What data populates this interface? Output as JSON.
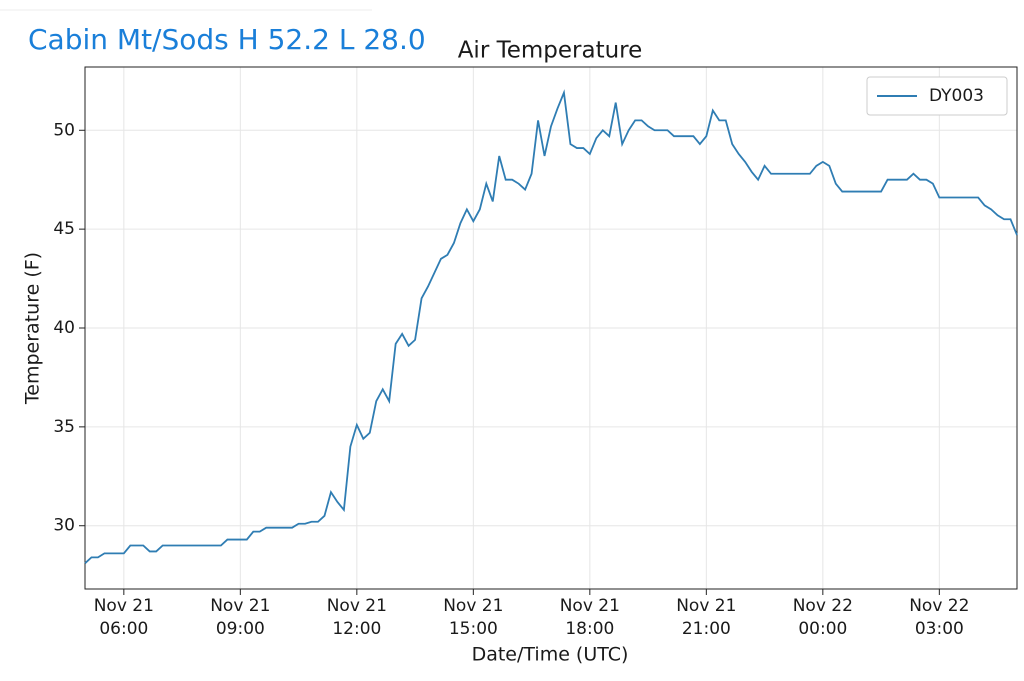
{
  "header": "Cabin Mt/Sods H 52.2 L 28.0",
  "chart_data": {
    "type": "line",
    "title": "Air Temperature",
    "x_label": "Date/Time (UTC)",
    "y_label": "Temperature (F)",
    "xlim": [
      "Nov 21 05:00",
      "Nov 22 05:00"
    ],
    "xticks": [
      "Nov 21 06:00",
      "Nov 21 09:00",
      "Nov 21 12:00",
      "Nov 21 15:00",
      "Nov 21 18:00",
      "Nov 21 21:00",
      "Nov 22 00:00",
      "Nov 22 03:00"
    ],
    "ylim": [
      26.8,
      53.2
    ],
    "yticks": [
      30,
      35,
      40,
      45,
      50
    ],
    "grid": true,
    "legend": "upper right",
    "x": [
      "Nov 21 05:00",
      "Nov 21 05:10",
      "Nov 21 05:20",
      "Nov 21 05:30",
      "Nov 21 06:00",
      "Nov 21 06:10",
      "Nov 21 06:30",
      "Nov 21 06:40",
      "Nov 21 06:50",
      "Nov 21 07:00",
      "Nov 21 08:00",
      "Nov 21 08:30",
      "Nov 21 08:40",
      "Nov 21 09:10",
      "Nov 21 09:20",
      "Nov 21 09:30",
      "Nov 21 09:40",
      "Nov 21 10:00",
      "Nov 21 10:20",
      "Nov 21 10:30",
      "Nov 21 10:40",
      "Nov 21 10:50",
      "Nov 21 11:00",
      "Nov 21 11:10",
      "Nov 21 11:20",
      "Nov 21 11:30",
      "Nov 21 11:40",
      "Nov 21 11:50",
      "Nov 21 12:00",
      "Nov 21 12:10",
      "Nov 21 12:20",
      "Nov 21 12:30",
      "Nov 21 12:40",
      "Nov 21 12:50",
      "Nov 21 13:00",
      "Nov 21 13:10",
      "Nov 21 13:20",
      "Nov 21 13:30",
      "Nov 21 13:40",
      "Nov 21 13:50",
      "Nov 21 14:00",
      "Nov 21 14:10",
      "Nov 21 14:20",
      "Nov 21 14:30",
      "Nov 21 14:40",
      "Nov 21 14:50",
      "Nov 21 15:00",
      "Nov 21 15:10",
      "Nov 21 15:20",
      "Nov 21 15:30",
      "Nov 21 15:40",
      "Nov 21 15:50",
      "Nov 21 16:00",
      "Nov 21 16:10",
      "Nov 21 16:20",
      "Nov 21 16:30",
      "Nov 21 16:40",
      "Nov 21 16:50",
      "Nov 21 17:00",
      "Nov 21 17:10",
      "Nov 21 17:20",
      "Nov 21 17:30",
      "Nov 21 17:40",
      "Nov 21 17:50",
      "Nov 21 18:00",
      "Nov 21 18:10",
      "Nov 21 18:20",
      "Nov 21 18:30",
      "Nov 21 18:40",
      "Nov 21 18:50",
      "Nov 21 19:00",
      "Nov 21 19:10",
      "Nov 21 19:20",
      "Nov 21 19:30",
      "Nov 21 19:40",
      "Nov 21 20:00",
      "Nov 21 20:10",
      "Nov 21 20:40",
      "Nov 21 20:50",
      "Nov 21 21:00",
      "Nov 21 21:10",
      "Nov 21 21:20",
      "Nov 21 21:30",
      "Nov 21 21:40",
      "Nov 21 21:50",
      "Nov 21 22:00",
      "Nov 21 22:10",
      "Nov 21 22:20",
      "Nov 21 22:30",
      "Nov 21 22:40",
      "Nov 21 23:00",
      "Nov 21 23:40",
      "Nov 21 23:50",
      "Nov 22 00:00",
      "Nov 22 00:10",
      "Nov 22 00:20",
      "Nov 22 00:30",
      "Nov 22 01:30",
      "Nov 22 01:40",
      "Nov 22 02:10",
      "Nov 22 02:20",
      "Nov 22 02:30",
      "Nov 22 02:40",
      "Nov 22 02:50",
      "Nov 22 03:00",
      "Nov 22 04:00",
      "Nov 22 04:10",
      "Nov 22 04:20",
      "Nov 22 04:30",
      "Nov 22 04:40",
      "Nov 22 04:50",
      "Nov 22 05:00"
    ],
    "series": [
      {
        "name": "DY003",
        "color": "#2f7db3",
        "values": [
          28.1,
          28.4,
          28.4,
          28.6,
          28.6,
          29.0,
          29.0,
          28.7,
          28.7,
          29.0,
          29.0,
          29.0,
          29.3,
          29.3,
          29.7,
          29.7,
          29.9,
          29.9,
          29.9,
          30.1,
          30.1,
          30.2,
          30.2,
          30.5,
          31.7,
          31.2,
          30.8,
          34.0,
          35.1,
          34.4,
          34.7,
          36.3,
          36.9,
          36.3,
          39.2,
          39.7,
          39.1,
          39.4,
          41.5,
          42.1,
          42.8,
          43.5,
          43.7,
          44.3,
          45.3,
          46.0,
          45.4,
          46.0,
          47.3,
          46.4,
          48.7,
          47.5,
          47.5,
          47.3,
          47.0,
          47.8,
          50.5,
          48.7,
          50.2,
          51.1,
          51.9,
          49.3,
          49.1,
          49.1,
          48.8,
          49.6,
          50.0,
          49.7,
          51.4,
          49.3,
          50.0,
          50.5,
          50.5,
          50.2,
          50.0,
          50.0,
          49.7,
          49.7,
          49.3,
          49.7,
          51.0,
          50.5,
          50.5,
          49.3,
          48.8,
          48.4,
          47.9,
          47.5,
          48.2,
          47.8,
          47.8,
          47.8,
          48.2,
          48.4,
          48.2,
          47.3,
          46.9,
          46.9,
          47.5,
          47.5,
          47.8,
          47.5,
          47.5,
          47.3,
          46.6,
          46.6,
          46.2,
          46.0,
          45.7,
          45.5,
          45.5,
          44.7
        ]
      }
    ]
  }
}
